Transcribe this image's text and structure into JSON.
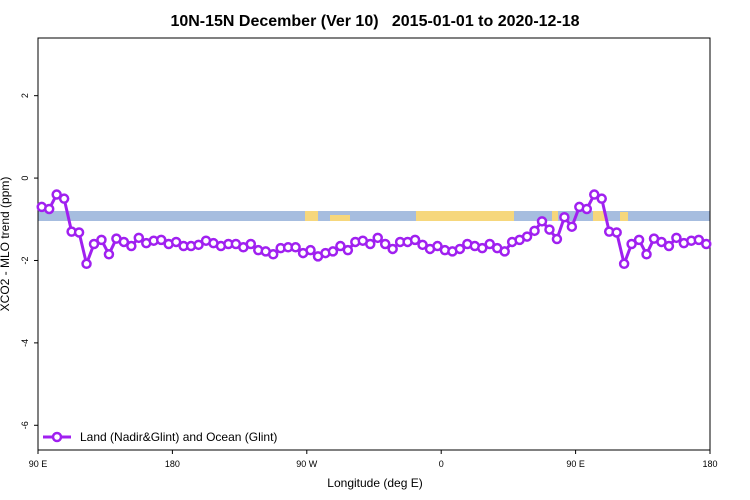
{
  "chart_data": {
    "type": "line",
    "title": "10N-15N December (Ver 10)   2015-01-01 to 2020-12-18",
    "xlabel": "Longitude (deg E)",
    "ylabel": "XCO2 - MLO trend (ppm)",
    "x": [
      92.5,
      97.5,
      102.5,
      107.5,
      112.5,
      117.5,
      122.5,
      127.5,
      132.5,
      137.5,
      142.5,
      147.5,
      152.5,
      157.5,
      162.5,
      167.5,
      172.5,
      177.5,
      182.5,
      187.5,
      192.5,
      197.5,
      202.5,
      207.5,
      212.5,
      217.5,
      222.5,
      227.5,
      232.5,
      237.5,
      242.5,
      247.5,
      252.5,
      257.5,
      262.5,
      267.5,
      272.5,
      277.5,
      282.5,
      287.5,
      292.5,
      297.5,
      302.5,
      307.5,
      312.5,
      317.5,
      322.5,
      327.5,
      332.5,
      337.5,
      342.5,
      347.5,
      352.5,
      357.5,
      362.5,
      367.5,
      372.5,
      377.5,
      382.5,
      387.5,
      392.5,
      397.5,
      402.5,
      407.5,
      412.5,
      417.5,
      422.5,
      427.5,
      432.5,
      437.5,
      442.5,
      447.5,
      452.5,
      457.5,
      462.5,
      467.5,
      472.5,
      477.5,
      482.5,
      487.5,
      492.5,
      497.5,
      502.5,
      507.5,
      512.5,
      517.5,
      522.5,
      527.5,
      532.5,
      537.5
    ],
    "series": [
      {
        "name": "Land (Nadir&Glint) and Ocean (Glint)",
        "color": "#a020f0",
        "values": [
          -0.7,
          -0.75,
          -0.4,
          -0.5,
          -1.3,
          -1.32,
          -2.08,
          -1.6,
          -1.5,
          -1.85,
          -1.47,
          -1.55,
          -1.65,
          -1.45,
          -1.58,
          -1.52,
          -1.5,
          -1.6,
          -1.55,
          -1.65,
          -1.65,
          -1.62,
          -1.52,
          -1.58,
          -1.65,
          -1.6,
          -1.6,
          -1.68,
          -1.6,
          -1.75,
          -1.78,
          -1.85,
          -1.7,
          -1.68,
          -1.68,
          -1.82,
          -1.75,
          -1.9,
          -1.82,
          -1.78,
          -1.65,
          -1.75,
          -1.55,
          -1.52,
          -1.6,
          -1.45,
          -1.6,
          -1.72,
          -1.55,
          -1.55,
          -1.5,
          -1.62,
          -1.72,
          -1.65,
          -1.75,
          -1.78,
          -1.72,
          -1.6,
          -1.65,
          -1.7,
          -1.6,
          -1.7,
          -1.78,
          -1.55,
          -1.5,
          -1.42,
          -1.28,
          -1.05,
          -1.25,
          -1.48,
          -0.95,
          -1.18,
          -0.7,
          -0.75,
          -0.4,
          -0.5,
          -1.3,
          -1.32,
          -2.08,
          -1.6,
          -1.5,
          -1.85,
          -1.47,
          -1.55,
          -1.65,
          -1.45,
          -1.58,
          -1.52,
          -1.5,
          -1.6
        ]
      }
    ],
    "xlim": [
      90,
      540
    ],
    "xticks": [
      {
        "value": 90,
        "label": "90 E"
      },
      180,
      {
        "value": 270,
        "label": "90 W"
      },
      {
        "value": 360,
        "label": "0"
      },
      {
        "value": 450,
        "label": "90 E"
      },
      {
        "value": 540,
        "label": "180"
      }
    ],
    "ylim": [
      -6.6,
      3.4
    ],
    "yticks": [
      -6,
      -4,
      -2,
      0,
      2
    ],
    "legend": "bottom-left"
  }
}
